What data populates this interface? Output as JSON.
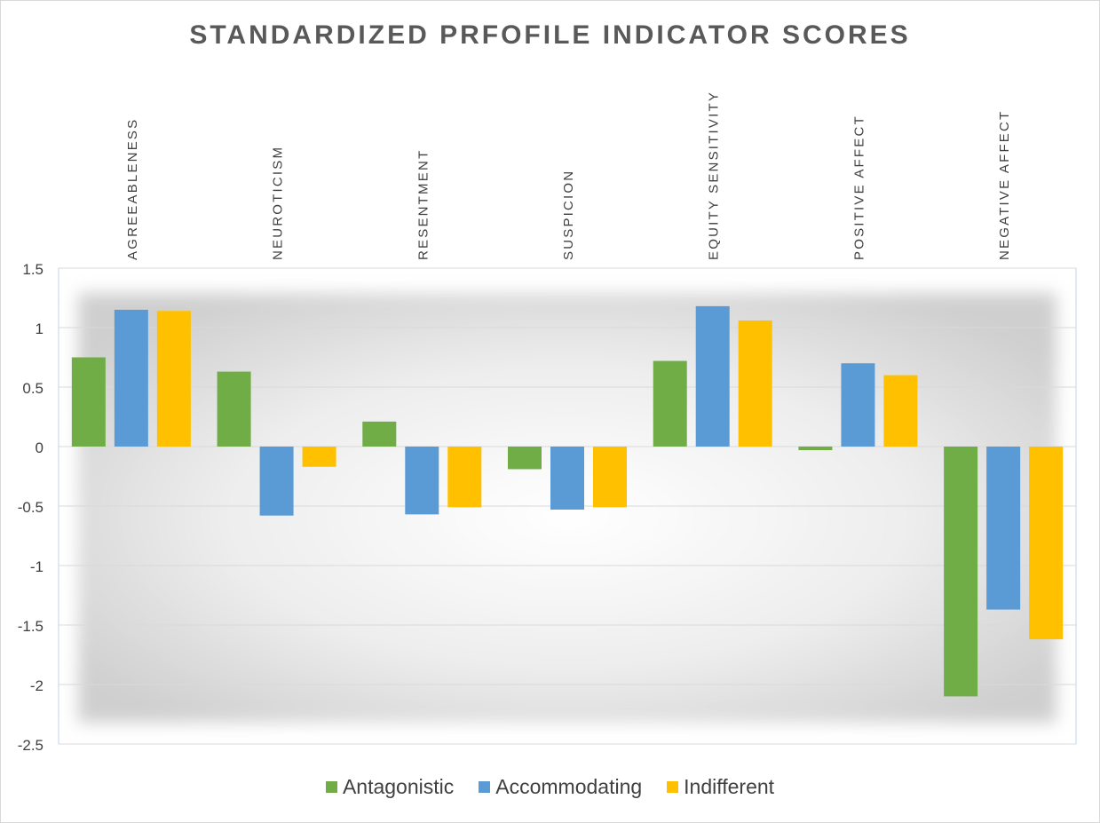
{
  "chart_data": {
    "type": "bar",
    "title": "STANDARDIZED PRFOFILE INDICATOR SCORES",
    "xlabel": "",
    "ylabel": "",
    "ylim": [
      -2.5,
      1.5
    ],
    "yticks": [
      1.5,
      1,
      0.5,
      0,
      -0.5,
      -1,
      -1.5,
      -2,
      -2.5
    ],
    "ytick_labels": [
      "1.5",
      "1",
      "0.5",
      "0",
      "-0.5",
      "-1",
      "-1.5",
      "-2",
      "-2.5"
    ],
    "categories": [
      "AGREEABLENESS",
      "NEUROTICISM",
      "RESENTMENT",
      "SUSPICION",
      "EQUITY SENSITIVITY",
      "POSITIVE AFFECT",
      "NEGATIVE AFFECT"
    ],
    "grid": true,
    "legend_position": "bottom",
    "series": [
      {
        "name": "Antagonistic",
        "color": "#70AD47",
        "values": [
          0.75,
          0.63,
          0.21,
          -0.19,
          0.72,
          -0.03,
          -2.1
        ]
      },
      {
        "name": "Accommodating",
        "color": "#5B9BD5",
        "values": [
          1.15,
          -0.58,
          -0.57,
          -0.53,
          1.18,
          0.7,
          -1.37
        ]
      },
      {
        "name": "Indifferent",
        "color": "#FFC000",
        "values": [
          1.14,
          -0.17,
          -0.51,
          -0.51,
          1.06,
          0.6,
          -1.62
        ]
      }
    ]
  }
}
